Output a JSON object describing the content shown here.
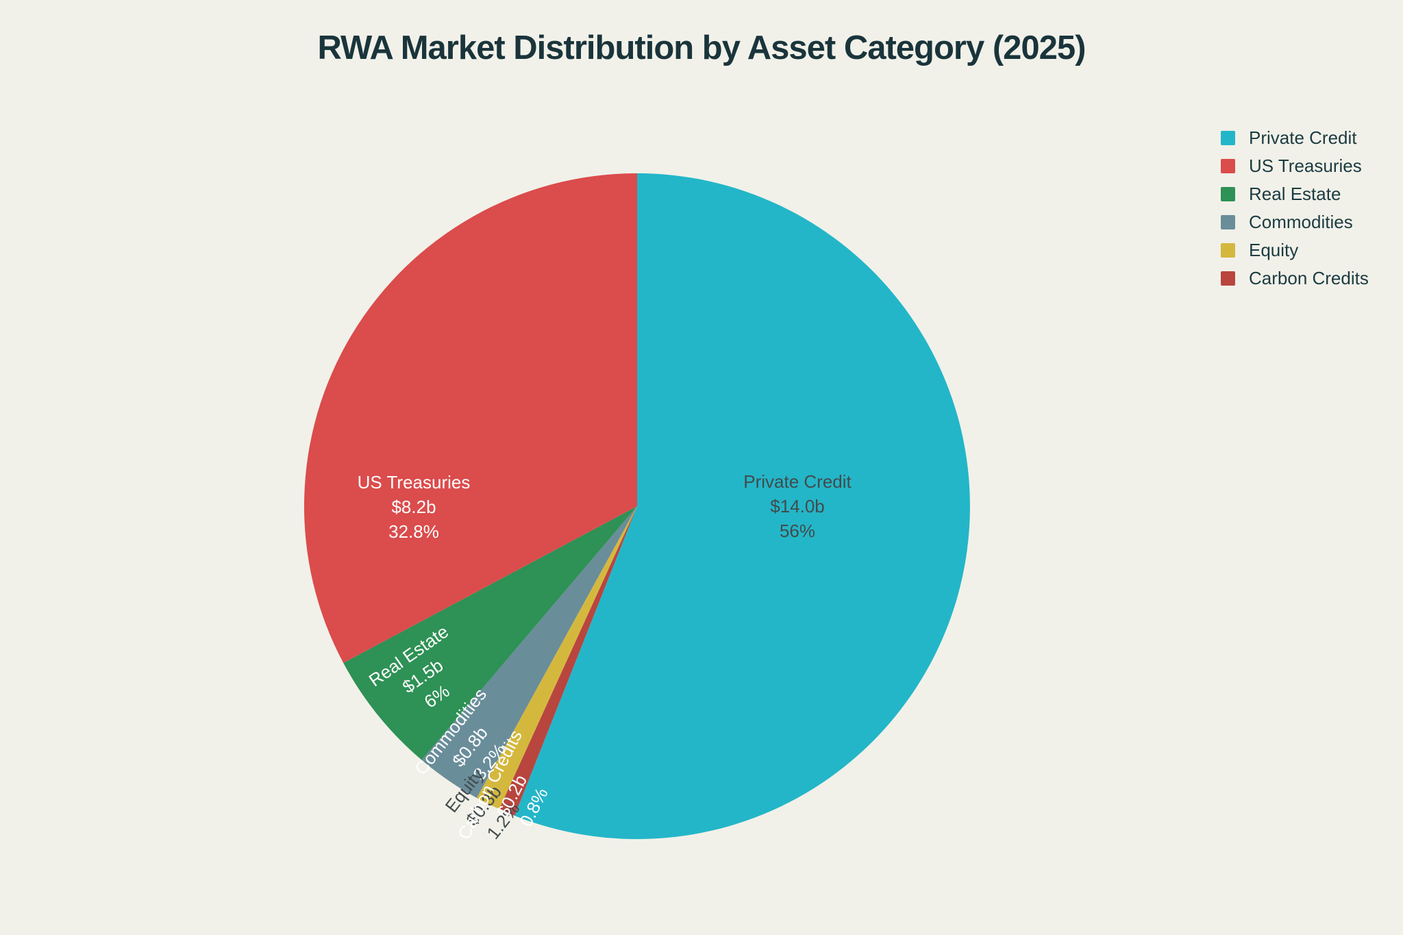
{
  "page": {
    "background_color": "#f1f1e9"
  },
  "title": {
    "text": "RWA Market Distribution by Asset Category (2025)",
    "color": "#1a343b"
  },
  "chart_data": {
    "type": "pie",
    "title": "RWA Market Distribution by Asset Category (2025)",
    "unit": "USD billions",
    "total_value_b": 25.0,
    "start_angle": "top",
    "first_slice_direction": "clockwise",
    "remaining_slices_direction": "counterclockwise",
    "legend_position": "right",
    "slices": [
      {
        "label": "Private Credit",
        "value_b": 14.0,
        "value_label": "$14.0b",
        "pct": 56.0,
        "pct_label": "56%",
        "color": "#23b6c8",
        "label_text_color": "#424b4d",
        "label_placement": "inside"
      },
      {
        "label": "US Treasuries",
        "value_b": 8.2,
        "value_label": "$8.2b",
        "pct": 32.8,
        "pct_label": "32.8%",
        "color": "#db4c4c",
        "label_text_color": "#ffffff",
        "label_placement": "inside"
      },
      {
        "label": "Real Estate",
        "value_b": 1.5,
        "value_label": "$1.5b",
        "pct": 6.0,
        "pct_label": "6%",
        "color": "#2e9155",
        "label_text_color": "#ffffff",
        "label_placement": "inside"
      },
      {
        "label": "Commodities",
        "value_b": 0.8,
        "value_label": "$0.8b",
        "pct": 3.2,
        "pct_label": "3.2%",
        "color": "#6a8d9a",
        "label_text_color": "#ffffff",
        "label_placement": "inside"
      },
      {
        "label": "Equity",
        "value_b": 0.3,
        "value_label": "$0.3b",
        "pct": 1.2,
        "pct_label": "1.2%",
        "color": "#d4b83e",
        "label_text_color": "#424b4d",
        "label_placement": "outside"
      },
      {
        "label": "Carbon Credits",
        "value_b": 0.2,
        "value_label": "$0.2b",
        "pct": 0.8,
        "pct_label": "0.8%",
        "color": "#b9453f",
        "label_text_color": "#ffffff",
        "label_placement": "inside"
      }
    ]
  }
}
